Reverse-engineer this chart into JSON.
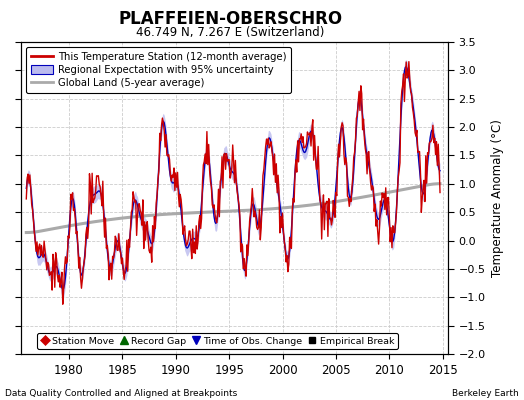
{
  "title": "PLAFFEIEN-OBERSCHRO",
  "subtitle": "46.749 N, 7.267 E (Switzerland)",
  "ylabel": "Temperature Anomaly (°C)",
  "xlabel_left": "Data Quality Controlled and Aligned at Breakpoints",
  "xlabel_right": "Berkeley Earth",
  "ylim": [
    -2.0,
    3.5
  ],
  "xlim": [
    1975.5,
    2015.5
  ],
  "xticks": [
    1980,
    1985,
    1990,
    1995,
    2000,
    2005,
    2010,
    2015
  ],
  "yticks": [
    -2,
    -1.5,
    -1,
    -0.5,
    0,
    0.5,
    1,
    1.5,
    2,
    2.5,
    3,
    3.5
  ],
  "red_color": "#cc0000",
  "blue_color": "#0000bb",
  "blue_fill": "#bbbbee",
  "gray_color": "#aaaaaa",
  "background_color": "#ffffff",
  "grid_color": "#cccccc",
  "legend_entries": [
    "This Temperature Station (12-month average)",
    "Regional Expectation with 95% uncertainty",
    "Global Land (5-year average)"
  ],
  "marker_legend": [
    {
      "symbol": "D",
      "color": "#cc0000",
      "label": "Station Move"
    },
    {
      "symbol": "^",
      "color": "#006600",
      "label": "Record Gap"
    },
    {
      "symbol": "v",
      "color": "#0000bb",
      "label": "Time of Obs. Change"
    },
    {
      "symbol": "s",
      "color": "#000000",
      "label": "Empirical Break"
    }
  ]
}
